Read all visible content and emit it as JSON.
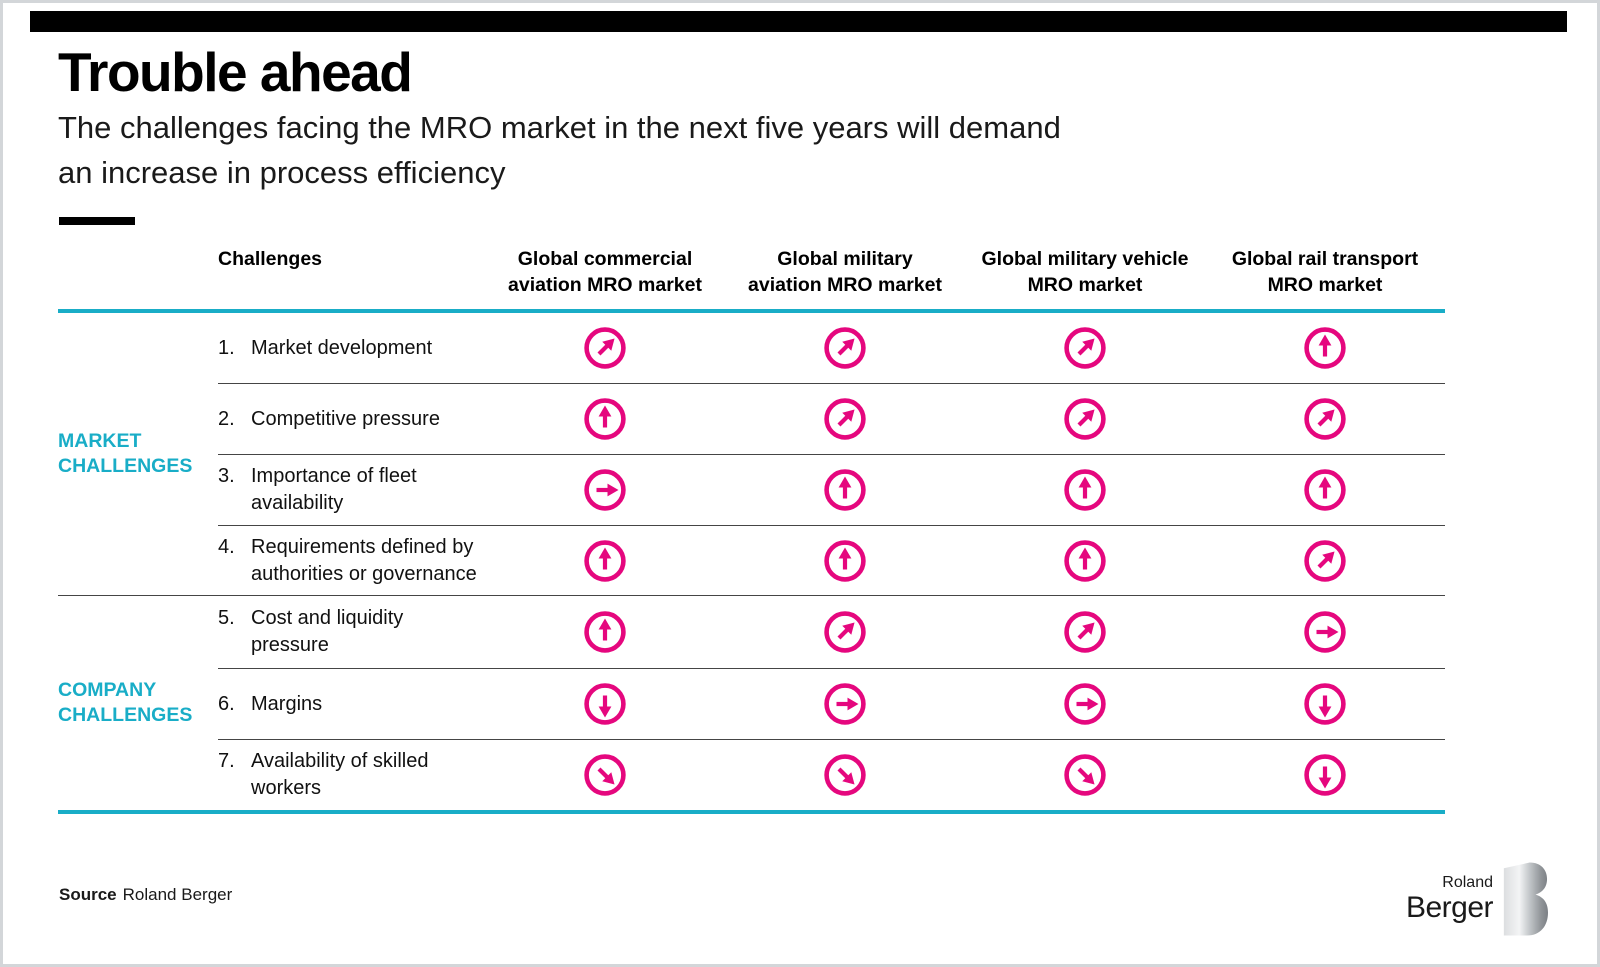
{
  "page": {
    "title": "Trouble ahead",
    "subtitle_lines": [
      "The challenges facing the MRO market in the next five years will demand",
      "an increase in process efficiency"
    ],
    "source_label": "Source",
    "source_value": "Roland Berger"
  },
  "logo": {
    "top": "Roland",
    "bottom": "Berger",
    "mark": "B"
  },
  "colors": {
    "pink": "#E5077E",
    "turquoise": "#19ADC7",
    "divider": "#454545",
    "text": "#1A1A1A"
  },
  "table": {
    "header": {
      "challenges": "Challenges",
      "markets": [
        {
          "lines": [
            "Global commercial",
            "aviation MRO market"
          ]
        },
        {
          "lines": [
            "Global military",
            "aviation MRO market"
          ]
        },
        {
          "lines": [
            "Global military vehicle",
            "MRO market"
          ]
        },
        {
          "lines": [
            "Global rail transport",
            "MRO market"
          ]
        }
      ]
    },
    "groups": [
      {
        "id": "market",
        "lines": [
          "MARKET",
          "CHALLENGES"
        ],
        "row_start": 1,
        "row_span": 4
      },
      {
        "id": "company",
        "lines": [
          "COMPANY",
          "CHALLENGES"
        ],
        "row_start": 5,
        "row_span": 3
      }
    ],
    "rows": [
      {
        "num": "1.",
        "lines": [
          "Market development"
        ],
        "arrows": [
          "up-right",
          "up-right",
          "up-right",
          "up"
        ]
      },
      {
        "num": "2.",
        "lines": [
          "Competitive pressure"
        ],
        "arrows": [
          "up",
          "up-right",
          "up-right",
          "up-right"
        ]
      },
      {
        "num": "3.",
        "lines": [
          "Importance of fleet",
          "availability"
        ],
        "arrows": [
          "right",
          "up",
          "up",
          "up"
        ]
      },
      {
        "num": "4.",
        "lines": [
          "Requirements defined by",
          "authorities or governance"
        ],
        "arrows": [
          "up",
          "up",
          "up",
          "up-right"
        ]
      },
      {
        "num": "5.",
        "lines": [
          "Cost and liquidity",
          "pressure"
        ],
        "arrows": [
          "up",
          "up-right",
          "up-right",
          "right"
        ]
      },
      {
        "num": "6.",
        "lines": [
          "Margins"
        ],
        "arrows": [
          "down",
          "right",
          "right",
          "down"
        ]
      },
      {
        "num": "7.",
        "lines": [
          "Availability of skilled",
          "workers"
        ],
        "arrows": [
          "down-right",
          "down-right",
          "down-right",
          "down"
        ]
      }
    ]
  },
  "chart_data": {
    "type": "table",
    "title": "Trouble ahead",
    "subtitle": "The challenges facing the MRO market in the next five years will demand an increase in process efficiency",
    "columns": [
      "Challenges",
      "Global commercial aviation MRO market",
      "Global military aviation MRO market",
      "Global military vehicle MRO market",
      "Global rail transport MRO market"
    ],
    "row_groups": [
      {
        "label": "MARKET CHALLENGES",
        "rows": [
          "1. Market development",
          "2. Competitive pressure",
          "3. Importance of fleet availability",
          "4. Requirements defined by authorities or governance"
        ]
      },
      {
        "label": "COMPANY CHALLENGES",
        "rows": [
          "5. Cost and liquidity pressure",
          "6. Margins",
          "7. Availability of skilled workers"
        ]
      }
    ],
    "cell_trend_arrows": [
      [
        "up-right",
        "up-right",
        "up-right",
        "up"
      ],
      [
        "up",
        "up-right",
        "up-right",
        "up-right"
      ],
      [
        "right",
        "up",
        "up",
        "up"
      ],
      [
        "up",
        "up",
        "up",
        "up-right"
      ],
      [
        "up",
        "up-right",
        "up-right",
        "right"
      ],
      [
        "down",
        "right",
        "right",
        "down"
      ],
      [
        "down-right",
        "down-right",
        "down-right",
        "down"
      ]
    ],
    "source": "Source Roland Berger"
  }
}
